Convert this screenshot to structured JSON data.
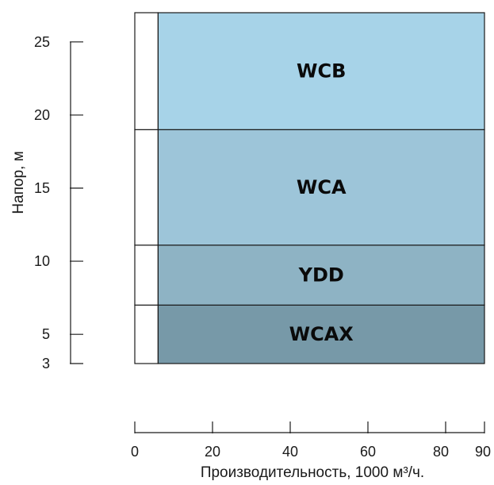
{
  "chart_data": {
    "type": "bar",
    "orientation": "stacked-ranges",
    "title": "",
    "xlabel": "Производительность, 1000 м³/ч.",
    "ylabel": "Напор, м",
    "xlim": [
      0,
      90
    ],
    "ylim": [
      3,
      27
    ],
    "x_ticks": [
      0,
      20,
      40,
      60,
      80,
      90
    ],
    "y_ticks": [
      3,
      5,
      10,
      15,
      20,
      25
    ],
    "x_range_all_series": [
      6,
      90
    ],
    "series": [
      {
        "name": "WCAX",
        "y_range": [
          3,
          7
        ],
        "color": "#7799a8"
      },
      {
        "name": "YDD",
        "y_range": [
          7,
          11.1
        ],
        "color": "#8eb3c4"
      },
      {
        "name": "WCA",
        "y_range": [
          11.1,
          19
        ],
        "color": "#9dc5d9"
      },
      {
        "name": "WCB",
        "y_range": [
          19,
          27
        ],
        "color": "#a7d3e8"
      }
    ],
    "left_blank_strip_x": [
      0,
      6
    ],
    "grid": false,
    "legend": "none"
  }
}
